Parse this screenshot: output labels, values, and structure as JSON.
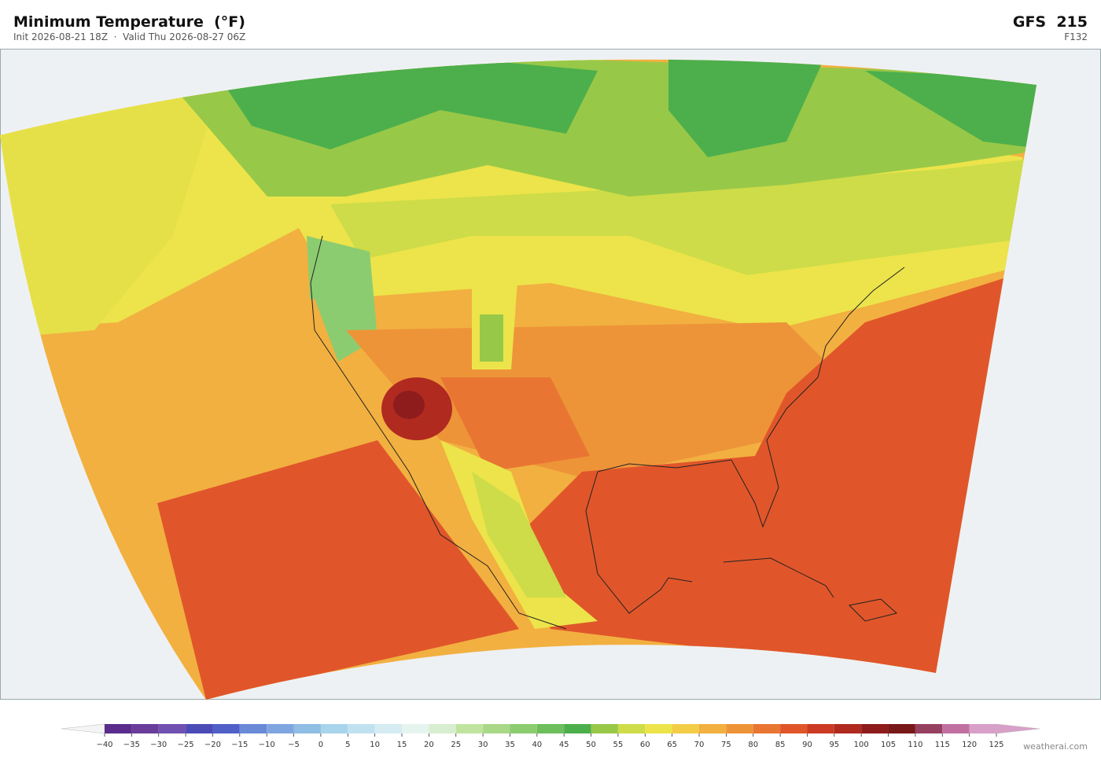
{
  "header": {
    "title": "Minimum Temperature  (°F)",
    "subtitle": "Init 2026-08-21 18Z  ·  Valid Thu 2026-08-27 06Z",
    "model": "GFS  215",
    "forecast_hour": "F132"
  },
  "colorbar": {
    "ticks": [
      {
        "value": -40,
        "label": "−40"
      },
      {
        "value": -35,
        "label": "−35"
      },
      {
        "value": -30,
        "label": "−30"
      },
      {
        "value": -25,
        "label": "−25"
      },
      {
        "value": -20,
        "label": "−20"
      },
      {
        "value": -15,
        "label": "−15"
      },
      {
        "value": -10,
        "label": "−10"
      },
      {
        "value": -5,
        "label": "−5"
      },
      0,
      5,
      10,
      15,
      20,
      25,
      30,
      35,
      40,
      45,
      50,
      55,
      60,
      65,
      70,
      75,
      80,
      85,
      90,
      95,
      100,
      105,
      110,
      115,
      120,
      125
    ],
    "colors": [
      "#5a2d8c",
      "#6a3d9a",
      "#7050b0",
      "#4b4bb8",
      "#5060c8",
      "#6a8ad8",
      "#7fa6e0",
      "#8fbde4",
      "#a8d4ec",
      "#c0e2f0",
      "#d4ecf2",
      "#e6f4f0",
      "#d8eed0",
      "#c0e4a0",
      "#a8d888",
      "#8ccc70",
      "#6cbf5c",
      "#4caf4c",
      "#98c848",
      "#cddc48",
      "#ece44a",
      "#f3cc48",
      "#f2b040",
      "#ee9438",
      "#e87632",
      "#e0562a",
      "#cc3a24",
      "#b02a20",
      "#8e1c1c",
      "#781818",
      "#964060",
      "#c070a0",
      "#d8a0c8"
    ],
    "under_color": "#f4f4f4",
    "over_color": "#d8a0c8"
  },
  "credit": "weatherai.com"
}
